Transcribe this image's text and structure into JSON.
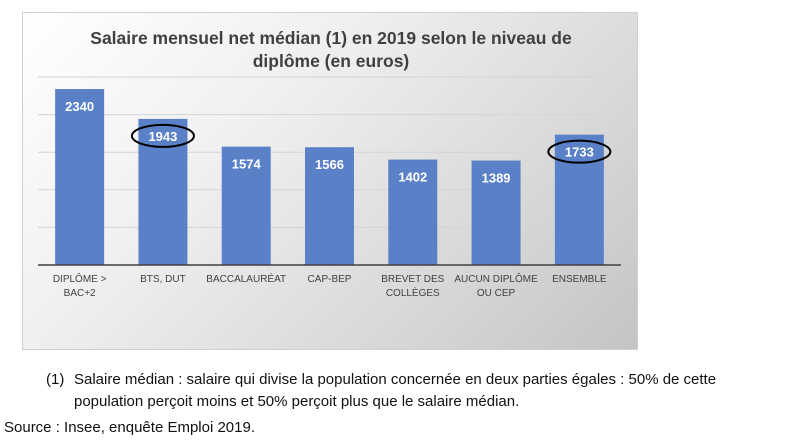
{
  "chart_data": {
    "type": "bar",
    "title_lines": [
      "Salaire mensuel net médian (1) en 2019 selon le niveau de",
      "diplôme (en euros)"
    ],
    "categories": [
      [
        "DIPLÔME >",
        "BAC+2"
      ],
      [
        "BTS, DUT"
      ],
      [
        "BACCALAURÉAT"
      ],
      [
        "CAP-BEP"
      ],
      [
        "BREVET DES",
        "COLLÈGES"
      ],
      [
        "AUCUN DIPLÔME",
        "OU CEP"
      ],
      [
        "ENSEMBLE"
      ]
    ],
    "values": [
      2340,
      1943,
      1574,
      1566,
      1402,
      1389,
      1733
    ],
    "data_labels": [
      "2340",
      "1943",
      "1574",
      "1566",
      "1402",
      "1389",
      "1733"
    ],
    "highlighted": [
      1,
      6
    ],
    "ylim": [
      0,
      2500
    ],
    "gridlines": [
      500,
      1000,
      1500,
      2000,
      2500
    ],
    "xlabel": "",
    "ylabel": "",
    "legend": "none",
    "bar_color": "#5a81c8",
    "grid_color": "#d4d4d4",
    "axis_color": "#404040"
  },
  "footnote": {
    "marker": "(1)",
    "line1": "Salaire médian : salaire qui divise la population concernée en deux parties égales : 50% de cette",
    "line2": "population perçoit moins et 50% perçoit plus que le salaire médian."
  },
  "source": "Source : Insee, enquête Emploi 2019."
}
